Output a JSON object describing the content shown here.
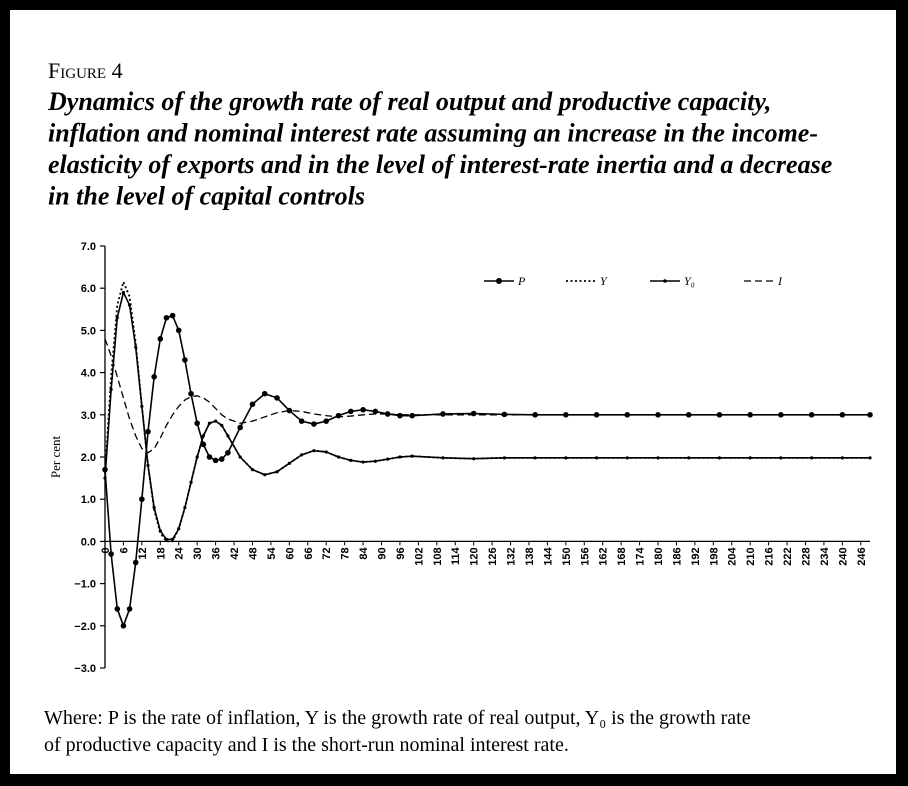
{
  "chart_data": {
    "type": "line",
    "figure_label": "Figure 4",
    "title_lines": [
      "Dynamics of the growth rate of real output and productive capacity,",
      "inflation and nominal interest rate assuming an increase in the income-",
      "elasticity of exports and in the level of interest-rate inertia and a decrease",
      "in the level of capital controls"
    ],
    "ylabel": "Per cent",
    "caption_lines": [
      "Where: P is the rate of inflation, Y is the growth rate of real output, Y₀ is the growth rate",
      "of productive capacity and I is the short-run nominal interest rate."
    ],
    "x": [
      0,
      2,
      4,
      6,
      8,
      10,
      12,
      14,
      16,
      18,
      20,
      22,
      24,
      26,
      28,
      30,
      32,
      34,
      36,
      38,
      40,
      44,
      48,
      52,
      56,
      60,
      64,
      68,
      72,
      76,
      80,
      84,
      88,
      92,
      96,
      100,
      110,
      120,
      130,
      140,
      150,
      160,
      170,
      180,
      190,
      200,
      210,
      220,
      230,
      240,
      249
    ],
    "xlim": [
      0,
      249
    ],
    "xticks": [
      0,
      6,
      12,
      18,
      24,
      30,
      36,
      42,
      48,
      54,
      60,
      66,
      72,
      78,
      84,
      90,
      96,
      102,
      108,
      114,
      120,
      126,
      132,
      138,
      144,
      150,
      156,
      162,
      168,
      174,
      180,
      186,
      192,
      198,
      204,
      210,
      216,
      222,
      228,
      234,
      240,
      246
    ],
    "ylim": [
      -3,
      7
    ],
    "yticks": [
      {
        "value": 7,
        "label": "7.0"
      },
      {
        "value": 6,
        "label": "6.0"
      },
      {
        "value": 5,
        "label": "5.0"
      },
      {
        "value": 4,
        "label": "4.0"
      },
      {
        "value": 3,
        "label": "3.0"
      },
      {
        "value": 2,
        "label": "2.0"
      },
      {
        "value": 1,
        "label": "1.0"
      },
      {
        "value": 0,
        "label": "0.0"
      },
      {
        "value": -1,
        "label": "−1.0"
      },
      {
        "value": -2,
        "label": "−2.0"
      },
      {
        "value": -3,
        "label": "−3.0"
      }
    ],
    "series": [
      {
        "name": "P",
        "color": "#000000",
        "style": "solid",
        "marker": "circle",
        "values": [
          1.7,
          -0.3,
          -1.6,
          -2.0,
          -1.6,
          -0.5,
          1.0,
          2.6,
          3.9,
          4.8,
          5.3,
          5.35,
          5.0,
          4.3,
          3.5,
          2.8,
          2.3,
          2.0,
          1.92,
          1.95,
          2.1,
          2.7,
          3.25,
          3.5,
          3.4,
          3.1,
          2.85,
          2.78,
          2.85,
          2.98,
          3.08,
          3.12,
          3.08,
          3.02,
          2.98,
          2.98,
          3.02,
          3.03,
          3.01,
          3.0,
          3.0,
          3.0,
          3.0,
          3.0,
          3.0,
          3.0,
          3.0,
          3.0,
          3.0,
          3.0,
          3.0
        ]
      },
      {
        "name": "Y",
        "color": "#000000",
        "style": "dotted",
        "marker": "none",
        "values": [
          1.6,
          3.9,
          5.6,
          6.15,
          5.8,
          4.7,
          3.2,
          1.8,
          0.75,
          0.2,
          0.0,
          0.0,
          0.3,
          0.8,
          1.4,
          2.0,
          2.5,
          2.8,
          2.85,
          2.75,
          2.5,
          2.0,
          1.7,
          1.58,
          1.65,
          1.85,
          2.05,
          2.15,
          2.12,
          2.0,
          1.92,
          1.88,
          1.9,
          1.95,
          2.0,
          2.02,
          1.98,
          1.96,
          1.98,
          1.98,
          1.98,
          1.98,
          1.98,
          1.98,
          1.98,
          1.98,
          1.98,
          1.98,
          1.98,
          1.98,
          1.98
        ]
      },
      {
        "name": "Y₀",
        "color": "#000000",
        "style": "solid",
        "marker": "dot",
        "values": [
          1.5,
          3.6,
          5.3,
          5.9,
          5.6,
          4.6,
          3.2,
          1.8,
          0.8,
          0.25,
          0.05,
          0.05,
          0.3,
          0.8,
          1.4,
          2.0,
          2.5,
          2.8,
          2.85,
          2.75,
          2.5,
          2.0,
          1.7,
          1.58,
          1.65,
          1.85,
          2.05,
          2.15,
          2.12,
          2.0,
          1.92,
          1.88,
          1.9,
          1.95,
          2.0,
          2.02,
          1.98,
          1.96,
          1.98,
          1.98,
          1.98,
          1.98,
          1.98,
          1.98,
          1.98,
          1.98,
          1.98,
          1.98,
          1.98,
          1.98,
          1.98
        ]
      },
      {
        "name": "I",
        "color": "#000000",
        "style": "dashed",
        "marker": "none",
        "values": [
          4.8,
          4.4,
          3.9,
          3.4,
          2.9,
          2.5,
          2.2,
          2.1,
          2.2,
          2.45,
          2.75,
          3.0,
          3.2,
          3.35,
          3.43,
          3.45,
          3.4,
          3.3,
          3.15,
          3.0,
          2.9,
          2.8,
          2.85,
          2.95,
          3.05,
          3.1,
          3.08,
          3.02,
          2.98,
          2.95,
          2.97,
          3.0,
          3.02,
          3.02,
          3.0,
          3.0,
          3.0,
          3.0,
          3.0,
          3.0,
          3.0,
          3.0,
          3.0,
          3.0,
          3.0,
          3.0,
          3.0,
          3.0,
          3.0,
          3.0,
          3.0
        ]
      }
    ]
  }
}
